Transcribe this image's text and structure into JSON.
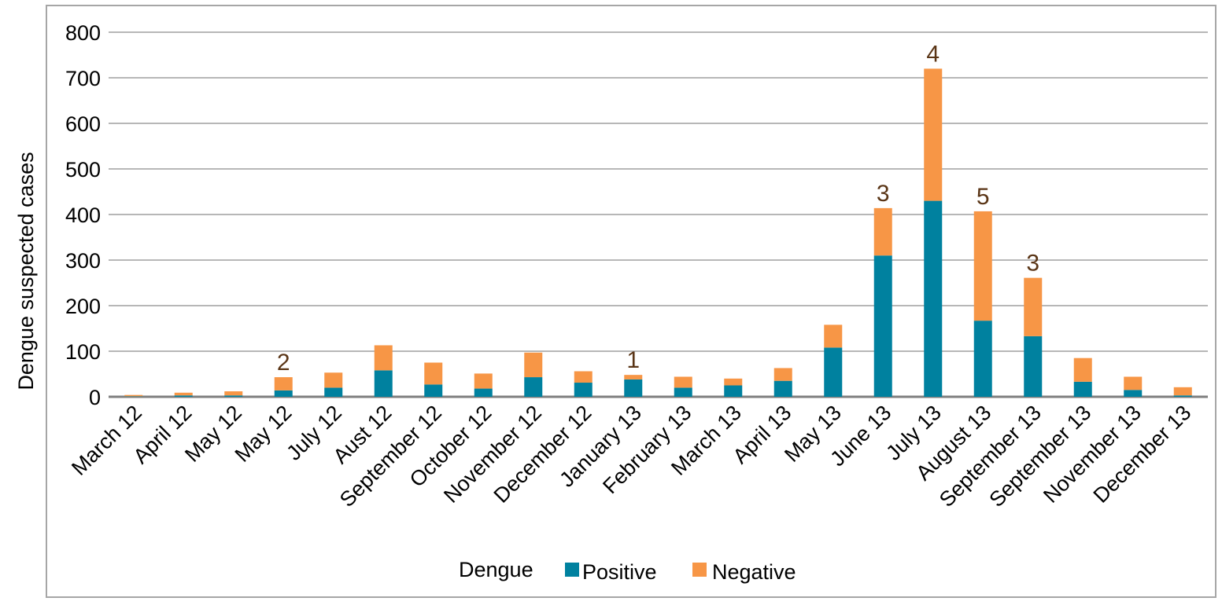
{
  "chart_data": {
    "type": "bar",
    "stacked": true,
    "title": "",
    "xlabel": "",
    "ylabel": "Dengue suspected cases",
    "ylim": [
      0,
      800
    ],
    "yticks": [
      0,
      100,
      200,
      300,
      400,
      500,
      600,
      700,
      800
    ],
    "grid": true,
    "categories": [
      "March 12",
      "April 12",
      "May 12",
      "May 12",
      "July 12",
      "Aust 12",
      "September 12",
      "October 12",
      "November 12",
      "December 12",
      "January 13",
      "February 13",
      "March 13",
      "April 13",
      "May 13",
      "June 13",
      "July 13",
      "August 13",
      "September 13",
      "September 13",
      "November 13",
      "December 13"
    ],
    "series": [
      {
        "name": "Positive",
        "color": "#00819f",
        "values": [
          1,
          3,
          3,
          14,
          20,
          58,
          27,
          18,
          43,
          31,
          38,
          20,
          25,
          35,
          108,
          310,
          430,
          167,
          133,
          33,
          15,
          3
        ]
      },
      {
        "name": "Negative",
        "color": "#f79646",
        "values": [
          3,
          6,
          9,
          29,
          33,
          55,
          48,
          33,
          54,
          25,
          10,
          24,
          15,
          28,
          50,
          104,
          290,
          240,
          128,
          52,
          29,
          18
        ]
      }
    ],
    "annotations": [
      {
        "category_index": 3,
        "text": "2"
      },
      {
        "category_index": 10,
        "text": "1"
      },
      {
        "category_index": 15,
        "text": "3"
      },
      {
        "category_index": 16,
        "text": "4"
      },
      {
        "category_index": 17,
        "text": "5"
      },
      {
        "category_index": 18,
        "text": "3"
      }
    ],
    "legend": {
      "title": "Dengue",
      "position": "bottom"
    }
  },
  "colors": {
    "gridline": "#8c8c8c",
    "axis": "#7f7f7f",
    "annotation": "#5a3516",
    "frame": "#a6a6a6"
  }
}
